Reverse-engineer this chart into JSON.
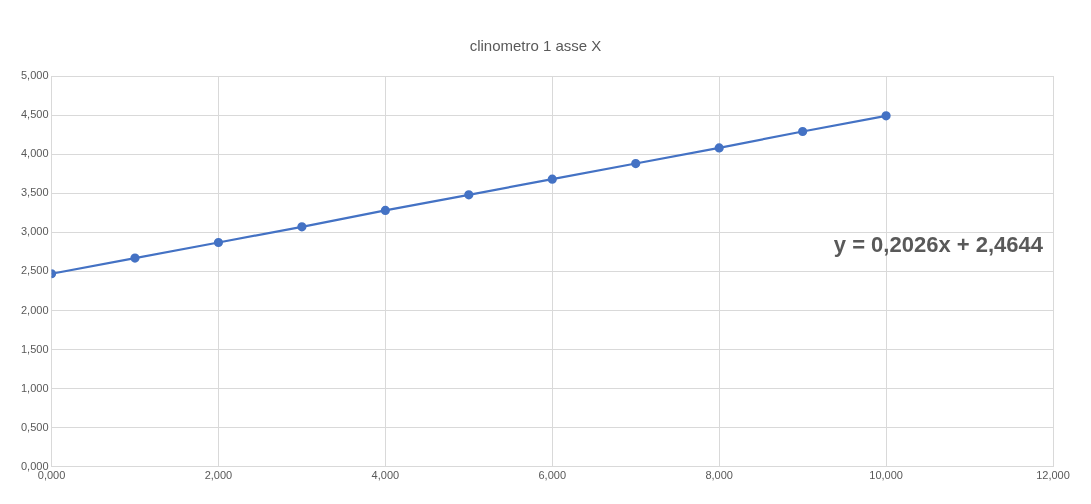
{
  "chart_data": {
    "type": "line",
    "title": "clinometro 1 asse X",
    "x": [
      0,
      1,
      2,
      3,
      4,
      5,
      6,
      7,
      8,
      9,
      10
    ],
    "series": [
      {
        "color": "#4472c4",
        "values": [
          2.47,
          2.67,
          2.87,
          3.07,
          3.28,
          3.48,
          3.68,
          3.88,
          4.08,
          4.29,
          4.49
        ]
      }
    ],
    "xlim": [
      0,
      12
    ],
    "xticks": [
      {
        "value": 0,
        "label": "0,000"
      },
      {
        "value": 2,
        "label": "2,000"
      },
      {
        "value": 4,
        "label": "4,000"
      },
      {
        "value": 6,
        "label": "6,000"
      },
      {
        "value": 8,
        "label": "8,000"
      },
      {
        "value": 10,
        "label": "10,000"
      },
      {
        "value": 12,
        "label": "12,000"
      }
    ],
    "ylim": [
      0,
      5
    ],
    "yticks": [
      {
        "value": 0,
        "label": "0,000"
      },
      {
        "value": 0.5,
        "label": "0,500"
      },
      {
        "value": 1,
        "label": "1,000"
      },
      {
        "value": 1.5,
        "label": "1,500"
      },
      {
        "value": 2,
        "label": "2,000"
      },
      {
        "value": 2.5,
        "label": "2,500"
      },
      {
        "value": 3,
        "label": "3,000"
      },
      {
        "value": 3.5,
        "label": "3,500"
      },
      {
        "value": 4,
        "label": "4,000"
      },
      {
        "value": 4.5,
        "label": "4,500"
      },
      {
        "value": 5,
        "label": "5,000"
      }
    ],
    "annotations": [
      "y = 0,2026x + 2,4644"
    ],
    "grid": true,
    "legend": false,
    "marker": "circle",
    "line_style": "solid"
  }
}
